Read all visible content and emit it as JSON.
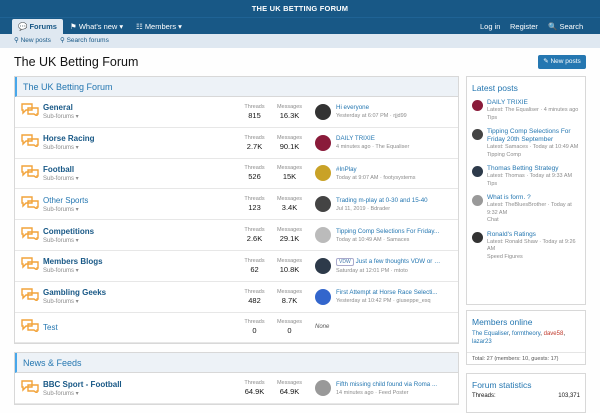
{
  "header": {
    "logo": "THE UK BETTING FORUM"
  },
  "nav": {
    "tabs": [
      "Forums",
      "What's new",
      "Members"
    ],
    "right": [
      "Log in",
      "Register",
      "Search"
    ]
  },
  "subnav": [
    "New posts",
    "Search forums"
  ],
  "page_title": "The UK Betting Forum",
  "new_posts_button": "New posts",
  "stat_labels": {
    "threads": "Threads",
    "messages": "Messages"
  },
  "sections": [
    {
      "title": "The UK Betting Forum",
      "forums": [
        {
          "name": "General",
          "sub": "Sub-forums",
          "threads": "815",
          "messages": "16.3K",
          "latest": "Hi everyone",
          "time": "Yesterday at 6:07 PM",
          "user": "rjjd99"
        },
        {
          "name": "Horse Racing",
          "sub": "Sub-forums",
          "threads": "2.7K",
          "messages": "90.1K",
          "latest": "DAILY TRIXIE",
          "time": "4 minutes ago",
          "user": "The Equaliser"
        },
        {
          "name": "Football",
          "sub": "Sub-forums",
          "threads": "526",
          "messages": "15K",
          "latest": "#InPlay",
          "time": "Today at 9:07 AM",
          "user": "footysystems"
        },
        {
          "name": "Other Sports",
          "sub": "Sub-forums",
          "threads": "123",
          "messages": "3.4K",
          "latest": "Trading m-play at 0-30 and 15-40",
          "time": "Jul 11, 2019",
          "user": "Bdrader"
        },
        {
          "name": "Competitions",
          "sub": "Sub-forums",
          "threads": "2.6K",
          "messages": "29.1K",
          "latest": "Tipping Comp Selections For Friday...",
          "time": "Today at 10:49 AM",
          "user": "Samaces"
        },
        {
          "name": "Members Blogs",
          "sub": "Sub-forums",
          "threads": "62",
          "messages": "10.8K",
          "prefix": "VDW",
          "latest": "Just a few thoughts VDW or even...",
          "time": "Saturday at 12:01 PM",
          "user": "mtoto"
        },
        {
          "name": "Gambling Geeks",
          "sub": "Sub-forums",
          "threads": "482",
          "messages": "8.7K",
          "latest": "First Attempt at Horse Race Selecti...",
          "time": "Yesterday at 10:42 PM",
          "user": "giuseppe_esq"
        },
        {
          "name": "Test",
          "threads": "0",
          "messages": "0",
          "none": "None"
        }
      ]
    },
    {
      "title": "News & Feeds",
      "forums": [
        {
          "name": "BBC Sport - Football",
          "sub": "Sub-forums",
          "threads": "64.9K",
          "messages": "64.9K",
          "latest": "Fifth missing child found via Roma ...",
          "time": "14 minutes ago",
          "user": "Feed Poster"
        }
      ]
    }
  ],
  "sidebar": {
    "latest_posts": {
      "title": "Latest posts",
      "items": [
        {
          "title": "DAILY TRIXIE",
          "meta": "Latest: The Equaliser · 4 minutes ago",
          "forum": "Tips"
        },
        {
          "title": "Tipping Comp Selections For Friday 20th September",
          "meta": "Latest: Samaces · Today at 10:49 AM",
          "forum": "Tipping Comp"
        },
        {
          "title": "Thomas Betting Strategy",
          "meta": "Latest: Thomas · Today at 9:33 AM",
          "forum": "Tips"
        },
        {
          "title": "What is form. ?",
          "meta": "Latest: TheBluesBrother · Today at 9:32 AM",
          "forum": "Chat"
        },
        {
          "title": "Ronald's Ratings",
          "meta": "Latest: Ronald Shaw · Today at 9:26 AM",
          "forum": "Speed Figures"
        }
      ]
    },
    "members_online": {
      "title": "Members online",
      "names": [
        "The Equaliser",
        "formtheory",
        "dave58",
        "lazar23"
      ],
      "total": "Total: 27 (members: 10, guests: 17)"
    },
    "forum_statistics": {
      "title": "Forum statistics",
      "label": "Threads:",
      "value": "103,371"
    }
  }
}
